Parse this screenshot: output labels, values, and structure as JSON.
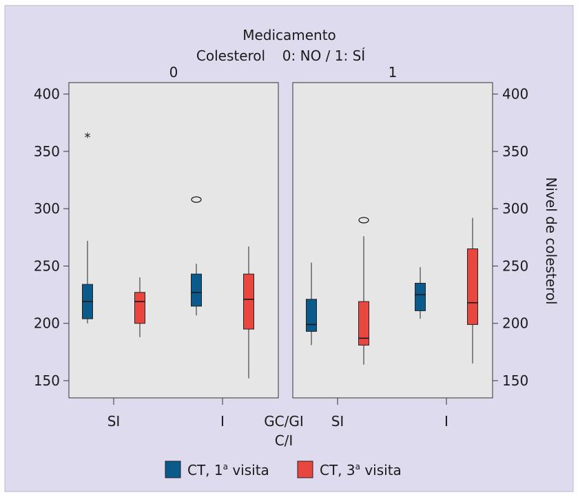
{
  "chart_data": {
    "type": "boxplot",
    "title_line1": "Medicamento",
    "title_line2_left": "Colesterol",
    "title_line2_right": "0: NO / 1: SÍ",
    "ylabel": "Nivel de colesterol",
    "ylim": [
      135,
      410
    ],
    "yticks": [
      150,
      200,
      250,
      300,
      350,
      400
    ],
    "xlabel_inner": "GC/GI",
    "xlabel": "C/I",
    "colors": {
      "ct1": "#0b5a8c",
      "ct3": "#e8473f",
      "panel": "#e6e6e6",
      "background": "#dedbee"
    },
    "legend": [
      {
        "key": "ct1",
        "label": "CT, 1",
        "sup": "a",
        "suffix": " visita"
      },
      {
        "key": "ct3",
        "label": "CT, 3",
        "sup": "a",
        "suffix": " visita"
      }
    ],
    "panels": [
      {
        "label": "0",
        "groups": [
          {
            "label": "SI",
            "boxes": [
              {
                "series": "ct1",
                "min": 200,
                "q1": 204,
                "median": 219,
                "q3": 234,
                "max": 272,
                "outliers": [
                  {
                    "value": 364,
                    "marker": "star"
                  }
                ]
              },
              {
                "series": "ct3",
                "min": 188,
                "q1": 200,
                "median": 219,
                "q3": 227,
                "max": 240,
                "outliers": []
              }
            ]
          },
          {
            "label": "I",
            "boxes": [
              {
                "series": "ct1",
                "min": 207,
                "q1": 215,
                "median": 227,
                "q3": 243,
                "max": 252,
                "outliers": [
                  {
                    "value": 308,
                    "marker": "circle"
                  }
                ]
              },
              {
                "series": "ct3",
                "min": 152,
                "q1": 195,
                "median": 221,
                "q3": 243,
                "max": 267,
                "outliers": []
              }
            ]
          }
        ]
      },
      {
        "label": "1",
        "groups": [
          {
            "label": "SI",
            "boxes": [
              {
                "series": "ct1",
                "min": 181,
                "q1": 193,
                "median": 199,
                "q3": 221,
                "max": 253,
                "outliers": []
              },
              {
                "series": "ct3",
                "min": 164,
                "q1": 181,
                "median": 187,
                "q3": 219,
                "max": 276,
                "outliers": [
                  {
                    "value": 290,
                    "marker": "circle"
                  }
                ]
              }
            ]
          },
          {
            "label": "I",
            "boxes": [
              {
                "series": "ct1",
                "min": 204,
                "q1": 211,
                "median": 225,
                "q3": 235,
                "max": 249,
                "outliers": []
              },
              {
                "series": "ct3",
                "min": 165,
                "q1": 199,
                "median": 218,
                "q3": 265,
                "max": 292,
                "outliers": []
              }
            ]
          }
        ]
      }
    ]
  }
}
